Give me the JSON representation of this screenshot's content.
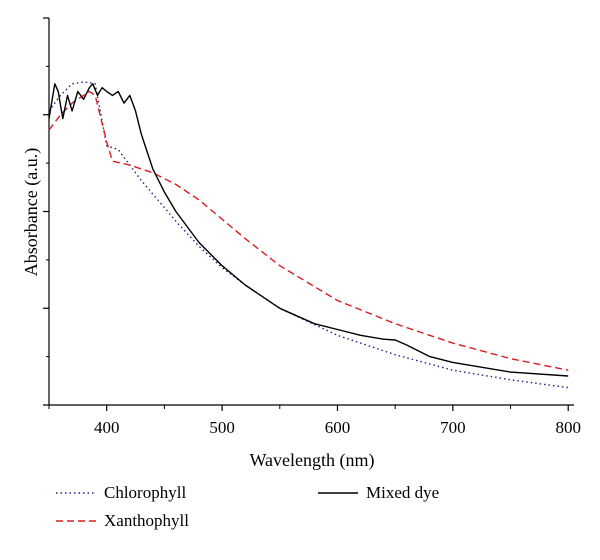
{
  "chart_data": {
    "type": "line",
    "title": "",
    "xlabel": "Wavelength (nm)",
    "ylabel": "Absorbance (a.u.)",
    "xlim": [
      350,
      805
    ],
    "ylim": [
      0,
      1
    ],
    "x_ticks": [
      400,
      500,
      600,
      700,
      800
    ],
    "x_tick_labels": [
      "400",
      "500",
      "600",
      "700",
      "800"
    ],
    "y_ticks_unlabeled": [
      0,
      0.25,
      0.5,
      0.75,
      1.0
    ],
    "grid": false,
    "legend_position": "bottom",
    "series": [
      {
        "name": "Chlorophyll",
        "color": "#1f1f8f",
        "dash": "dotted",
        "x": [
          350,
          360,
          370,
          380,
          390,
          400,
          410,
          420,
          430,
          440,
          450,
          460,
          480,
          500,
          520,
          550,
          600,
          650,
          700,
          750,
          800
        ],
        "y": [
          0.76,
          0.8,
          0.83,
          0.835,
          0.83,
          0.67,
          0.66,
          0.62,
          0.58,
          0.545,
          0.51,
          0.475,
          0.41,
          0.355,
          0.31,
          0.25,
          0.18,
          0.13,
          0.09,
          0.065,
          0.045
        ]
      },
      {
        "name": "Xanthophyll",
        "color": "#d81e1e",
        "dash": "dashed",
        "x": [
          350,
          360,
          370,
          380,
          385,
          390,
          400,
          405,
          420,
          440,
          460,
          480,
          500,
          520,
          550,
          600,
          650,
          700,
          750,
          800
        ],
        "y": [
          0.71,
          0.75,
          0.78,
          0.8,
          0.81,
          0.8,
          0.68,
          0.63,
          0.62,
          0.6,
          0.57,
          0.53,
          0.48,
          0.43,
          0.36,
          0.27,
          0.21,
          0.16,
          0.12,
          0.09
        ]
      },
      {
        "name": "Mixed dye",
        "color": "#000000",
        "dash": "solid",
        "x": [
          350,
          355,
          358,
          362,
          366,
          370,
          375,
          380,
          385,
          388,
          392,
          396,
          400,
          405,
          410,
          415,
          420,
          425,
          430,
          440,
          450,
          460,
          480,
          500,
          520,
          550,
          580,
          600,
          620,
          640,
          650,
          660,
          680,
          700,
          750,
          800
        ],
        "y": [
          0.74,
          0.83,
          0.81,
          0.74,
          0.8,
          0.76,
          0.81,
          0.79,
          0.82,
          0.83,
          0.8,
          0.82,
          0.81,
          0.8,
          0.81,
          0.78,
          0.8,
          0.76,
          0.7,
          0.61,
          0.55,
          0.5,
          0.42,
          0.36,
          0.31,
          0.25,
          0.21,
          0.195,
          0.18,
          0.17,
          0.168,
          0.155,
          0.125,
          0.11,
          0.085,
          0.075
        ]
      }
    ]
  }
}
